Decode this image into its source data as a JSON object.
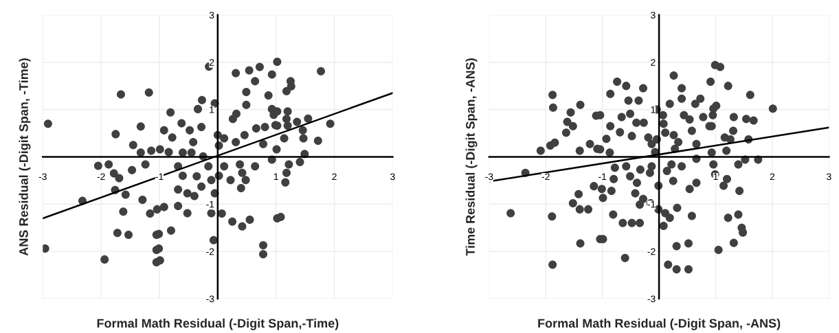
{
  "chart_data": [
    {
      "type": "scatter",
      "xlabel": "Formal Math Residual (-Digit Span,-Time)",
      "ylabel": "ANS Residual (-Digit Span, -Time)",
      "xlim": [
        -3,
        3
      ],
      "ylim": [
        -3,
        3
      ],
      "xticks": [
        -3,
        -2,
        -1,
        1,
        2,
        3
      ],
      "yticks": [
        -3,
        -2,
        -1,
        1,
        2,
        3
      ],
      "grid": true,
      "series": [
        {
          "type": "scatter",
          "marker": "circle",
          "color": "#404040",
          "x": [
            -1.66,
            -1.18,
            -2.91,
            -1.32,
            -1.75,
            -1.45,
            -1.32,
            -1.14,
            -2.05,
            -1.87,
            -1.24,
            -1.78,
            -1.69,
            -1.47,
            -1.76,
            -1.58,
            -2.32,
            -1.29,
            -1.62,
            -1.16,
            -1.72,
            -1.53,
            -2.96,
            -1.94,
            -1.05,
            -1.05,
            -1.05,
            -0.15,
            0.31,
            0.54,
            0.72,
            0.64,
            0.93,
            1.02,
            0.49,
            0.87,
            0.49,
            0.32,
            0.26,
            0.93,
            0.96,
            -0.05,
            -0.27,
            -0.34,
            -0.81,
            -0.62,
            -0.92,
            -0.78,
            -0.48,
            -0.28,
            -0.42,
            0.0,
            0.11,
            0.02,
            -0.99,
            -0.84,
            -0.6,
            -0.45,
            -0.25,
            0.31,
            0.46,
            0.66,
            0.81,
            0.99,
            0.78,
            0.93,
            0.64,
            0.38,
            0.42,
            0.48,
            0.4,
            0.22,
            0.11,
            0.02,
            -0.16,
            -0.11,
            -0.05,
            -0.36,
            -0.6,
            -0.68,
            -0.28,
            -0.68,
            -0.52,
            -0.4,
            -0.68,
            -0.52,
            -0.92,
            -1.04,
            -0.11,
            0.07,
            0.25,
            0.42,
            0.55,
            -1.01,
            -0.8,
            -1.01,
            -0.99,
            -0.07,
            0.78,
            0.78,
            1.02,
            1.25,
            1.26,
            1.18,
            1.77,
            1.02,
            1.2,
            1.18,
            1.36,
            1.55,
            1.93,
            1.02,
            1.2,
            1.46,
            1.14,
            1.47,
            1.72,
            1.01,
            1.49,
            1.41,
            1.22,
            1.18,
            1.16,
            1.08
          ],
          "values": [
            1.32,
            1.36,
            0.7,
            0.64,
            0.48,
            0.25,
            0.09,
            0.13,
            -0.19,
            -0.16,
            -0.16,
            -0.35,
            -0.45,
            -0.28,
            -0.7,
            -0.8,
            -0.93,
            -0.91,
            -1.16,
            -1.2,
            -1.61,
            -1.65,
            -1.94,
            -2.17,
            -1.65,
            -1.97,
            -2.23,
            1.91,
            1.77,
            1.83,
            1.9,
            1.6,
            1.74,
            2.01,
            1.37,
            1.3,
            1.1,
            0.91,
            0.8,
            1.01,
            0.89,
            1.13,
            1.2,
            1.01,
            0.94,
            0.71,
            0.56,
            0.41,
            0.56,
            0.63,
            0.31,
            0.46,
            0.39,
            0.24,
            0.16,
            0.1,
            0.09,
            0.09,
            0.01,
            0.31,
            0.46,
            0.6,
            0.63,
            0.67,
            0.27,
            -0.06,
            -0.2,
            -0.16,
            -0.34,
            -0.49,
            -0.66,
            -0.49,
            -0.2,
            -0.4,
            -0.2,
            -0.49,
            -0.77,
            -0.41,
            -0.4,
            -0.2,
            -0.63,
            -0.69,
            -0.77,
            -0.83,
            -1.04,
            -1.19,
            -1.06,
            -1.11,
            -1.19,
            -1.2,
            -1.37,
            -1.47,
            -1.33,
            -1.63,
            -1.56,
            -1.94,
            -2.19,
            -1.76,
            -1.87,
            -2.06,
            -1.3,
            1.6,
            1.49,
            1.39,
            1.81,
            0.96,
            0.96,
            0.8,
            0.74,
            0.81,
            0.7,
            0.66,
            0.66,
            0.56,
            0.39,
            0.39,
            0.34,
            0.16,
            0.06,
            -0.11,
            -0.16,
            -0.34,
            -0.54,
            -1.27
          ]
        },
        {
          "type": "line",
          "marker": "none",
          "color": "#000000",
          "x": [
            -3,
            3
          ],
          "values": [
            -1.3,
            1.35
          ]
        }
      ]
    },
    {
      "type": "scatter",
      "xlabel": "Formal Math Residual (-Digit Span, -ANS)",
      "ylabel": "Time Residual (-Digit Span, -ANS)",
      "xlim": [
        -3,
        3
      ],
      "ylim": [
        -3,
        3
      ],
      "xticks": [
        -3,
        -2,
        -1,
        1,
        2,
        3
      ],
      "yticks": [
        -3,
        -2,
        -1,
        1,
        2,
        3
      ],
      "grid": true,
      "series": [
        {
          "type": "scatter",
          "marker": "circle",
          "color": "#404040",
          "x": [
            -1.88,
            -1.87,
            -1.39,
            -1.56,
            -1.11,
            -1.62,
            -1.52,
            -1.64,
            -1.84,
            -1.92,
            -2.09,
            -1.4,
            -1.22,
            -1.09,
            -2.36,
            -1.15,
            -1.42,
            -1.52,
            -1.4,
            -1.25,
            -2.62,
            -1.89,
            -1.39,
            -1.04,
            -1.88,
            -1.04,
            -0.74,
            -0.58,
            -0.86,
            -0.28,
            -0.54,
            -0.36,
            -0.66,
            -0.51,
            -0.4,
            -0.27,
            -0.86,
            -0.69,
            -0.93,
            -0.48,
            -0.19,
            -1.04,
            -0.87,
            -0.07,
            -0.13,
            0.26,
            0.4,
            0.4,
            0.19,
            -0.04,
            0.07,
            0.08,
            0.11,
            -0.04,
            0.26,
            0.34,
            0.28,
            0.44,
            0.54,
            0.64,
            0.73,
            0.58,
            0.78,
            0.89,
            0.96,
            0.91,
            0.99,
            0.66,
            0.66,
            0.4,
            0.22,
            0.14,
            -0.13,
            -0.16,
            -0.33,
            -0.51,
            -0.58,
            -0.78,
            -0.8,
            -1.01,
            -0.84,
            -0.99,
            -0.39,
            -0.42,
            -0.28,
            -0.34,
            -0.15,
            -0.01,
            0.25,
            0.54,
            0.66,
            -0.01,
            0.11,
            0.32,
            0.19,
            0.08,
            0.58,
            -0.81,
            -0.64,
            -0.48,
            -0.34,
            -0.99,
            -0.6,
            0.31,
            0.52,
            0.16,
            0.31,
            0.52,
            1.08,
            1.22,
            1.61,
            2.01,
            1.01,
            0.95,
            1.32,
            1.54,
            1.67,
            0.93,
            1.31,
            1.16,
            1.26,
            1.58,
            1.19,
            0.93,
            1.52,
            1.75,
            1.4,
            0.96,
            0.99,
            1.2,
            1.14,
            1.42,
            1.22,
            1.4,
            1.46,
            1.48,
            1.32,
            1.05
          ],
          "values": [
            1.31,
            1.04,
            1.1,
            0.94,
            0.87,
            0.74,
            0.65,
            0.51,
            0.3,
            0.24,
            0.13,
            0.13,
            0.27,
            0.17,
            -0.34,
            -0.62,
            -0.79,
            -0.98,
            -1.11,
            -1.11,
            -1.19,
            -1.26,
            -1.83,
            -1.74,
            -2.28,
            0.88,
            1.59,
            1.5,
            1.33,
            1.45,
            1.19,
            1.19,
            0.84,
            0.91,
            0.72,
            0.72,
            0.65,
            0.52,
            0.38,
            0.44,
            0.41,
            0.16,
            0.09,
            0.1,
            0.27,
            1.72,
            1.45,
            1.23,
            1.12,
            1.0,
            0.88,
            0.7,
            0.51,
            0.37,
            0.46,
            0.31,
            0.17,
            0.88,
            0.79,
            1.12,
            1.23,
            0.55,
            0.84,
            0.65,
            1.02,
            1.59,
            1.94,
            0.27,
            -0.04,
            -0.2,
            -0.16,
            -0.3,
            -0.2,
            -0.34,
            -0.27,
            -0.41,
            -0.2,
            -0.23,
            -0.47,
            -0.68,
            -0.72,
            -0.87,
            -0.55,
            -0.77,
            -0.89,
            -1.01,
            -0.98,
            -0.61,
            -0.51,
            -0.68,
            -0.55,
            -1.11,
            -1.19,
            -1.08,
            -1.29,
            -1.46,
            -1.25,
            -1.22,
            -1.4,
            -1.4,
            -1.4,
            -1.74,
            -2.14,
            -1.89,
            -1.83,
            -2.28,
            -2.38,
            -2.38,
            1.9,
            1.5,
            1.31,
            1.02,
            1.08,
            0.88,
            0.84,
            0.8,
            0.77,
            0.65,
            0.55,
            0.41,
            0.37,
            0.37,
            0.13,
            0.09,
            -0.06,
            -0.06,
            -0.16,
            -0.16,
            -0.37,
            -0.47,
            -0.61,
            -0.72,
            -1.29,
            -1.22,
            -1.5,
            -1.6,
            -1.82,
            -1.97
          ]
        },
        {
          "type": "line",
          "marker": "none",
          "color": "#000000",
          "x": [
            -3,
            3
          ],
          "values": [
            -0.52,
            0.62
          ]
        }
      ]
    }
  ]
}
